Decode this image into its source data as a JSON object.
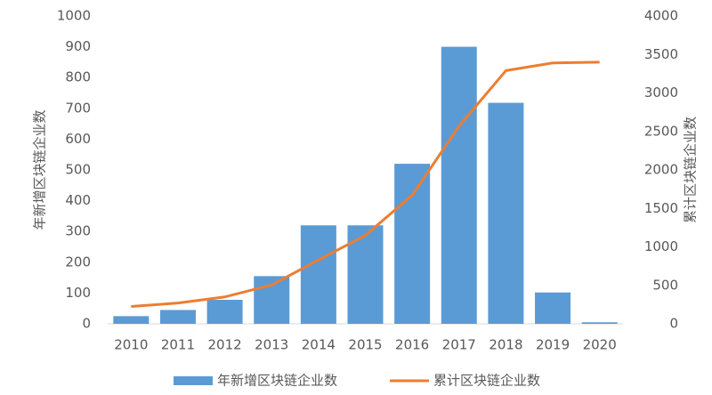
{
  "chart_data": {
    "type": "bar",
    "categories": [
      "2010",
      "2011",
      "2012",
      "2013",
      "2014",
      "2015",
      "2016",
      "2017",
      "2018",
      "2019",
      "2020"
    ],
    "y_label": "年新增区块链企业数",
    "y2_label": "累计区块链企业数",
    "series": [
      {
        "name": "年新增区块链企业数",
        "type": "bar",
        "color": "#5b9bd5",
        "values": [
          25,
          45,
          78,
          155,
          320,
          320,
          520,
          900,
          718,
          102,
          5
        ]
      },
      {
        "name": "累计区块链企业数",
        "type": "line",
        "axis": "y2",
        "color": "#ed7d31",
        "values": [
          225,
          270,
          350,
          505,
          830,
          1150,
          1670,
          2570,
          3290,
          3390,
          3400
        ]
      }
    ],
    "ylim": [
      0,
      1000
    ],
    "yticks": [
      0,
      100,
      200,
      300,
      400,
      500,
      600,
      700,
      800,
      900,
      1000
    ],
    "y2lim": [
      0,
      4000
    ],
    "y2ticks": [
      0,
      500,
      1000,
      1500,
      2000,
      2500,
      3000,
      3500,
      4000
    ],
    "grid": false,
    "legend": "bottom"
  }
}
